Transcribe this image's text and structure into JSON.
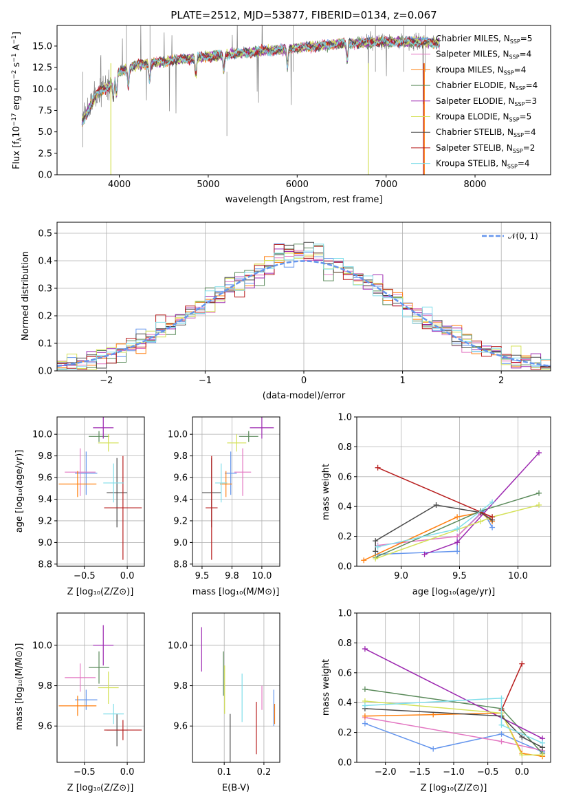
{
  "figure": {
    "title": "PLATE=2512, MJD=53877, FIBERID=0134, z=0.067"
  },
  "chart_data": [
    {
      "id": "spectrum",
      "type": "line",
      "title": "PLATE=2512, MJD=53877, FIBERID=0134, z=0.067",
      "xlabel": "wavelength [Angstrom, rest frame]",
      "ylabel": "Flux [fλ10⁻¹⁷ erg cm⁻² s⁻¹ A⁻¹]",
      "xlim": [
        3300,
        8850
      ],
      "ylim": [
        0,
        17.4
      ],
      "xticks": [
        4000,
        5000,
        6000,
        7000,
        8000
      ],
      "yticks": [
        0.0,
        2.5,
        5.0,
        7.5,
        10.0,
        12.5,
        15.0
      ],
      "grid": false,
      "legend_position": "right",
      "series": [
        {
          "name": "Chabrier MILES, N_SSP=5",
          "color": "#6495ed"
        },
        {
          "name": "Salpeter MILES, N_SSP=4",
          "color": "#e377c2"
        },
        {
          "name": "Kroupa MILES, N_SSP=4",
          "color": "#ff7f0e"
        },
        {
          "name": "Chabrier ELODIE, N_SSP=4",
          "color": "#5a8a5a"
        },
        {
          "name": "Salpeter ELODIE, N_SSP=3",
          "color": "#9c27b0"
        },
        {
          "name": "Kroupa ELODIE, N_SSP=5",
          "color": "#d4e157"
        },
        {
          "name": "Chabrier STELIB, N_SSP=4",
          "color": "#4a4a4a"
        },
        {
          "name": "Salpeter STELIB, N_SSP=2",
          "color": "#b71c1c"
        },
        {
          "name": "Kroupa STELIB, N_SSP=4",
          "color": "#80deea"
        }
      ],
      "continuum_x": [
        3580,
        3650,
        3750,
        3900,
        4000,
        4200,
        4500,
        5000,
        5500,
        6000,
        6500,
        7000,
        7400,
        7600
      ],
      "continuum_y": [
        6.0,
        7.5,
        9.5,
        10.5,
        12.0,
        12.8,
        13.2,
        13.8,
        14.3,
        14.8,
        15.3,
        15.5,
        15.5,
        15.3
      ]
    },
    {
      "id": "residuals",
      "type": "line",
      "xlabel": "(data-model)/error",
      "ylabel": "Normed distribution",
      "xlim": [
        -2.5,
        2.5
      ],
      "ylim": [
        0,
        0.54
      ],
      "xticks": [
        -2,
        -1,
        0,
        1,
        2
      ],
      "yticks": [
        0.0,
        0.1,
        0.2,
        0.3,
        0.4,
        0.5
      ],
      "grid": true,
      "legend_position": "top-right",
      "legend": "𝒩(0, 1)"
    },
    {
      "id": "z_vs_age",
      "type": "scatter",
      "xlabel": "Z [log₁₀(Z/Z⊙)]",
      "ylabel": "age  [log₁₀(age/yr)]",
      "xlim": [
        -0.82,
        0.2
      ],
      "ylim": [
        8.78,
        10.16
      ],
      "xticks": [
        -0.5,
        0.0
      ],
      "yticks": [
        8.8,
        9.0,
        9.2,
        9.4,
        9.6,
        9.8,
        10.0
      ],
      "points": [
        {
          "x": -0.48,
          "y": 9.64,
          "xerr": 0.13,
          "yerr": 0.2,
          "color": "#6495ed"
        },
        {
          "x": -0.55,
          "y": 9.65,
          "xerr": 0.18,
          "yerr": 0.22,
          "color": "#e377c2"
        },
        {
          "x": -0.58,
          "y": 9.54,
          "xerr": 0.22,
          "yerr": 0.12,
          "color": "#ff7f0e"
        },
        {
          "x": -0.33,
          "y": 9.98,
          "xerr": 0.12,
          "yerr": 0.05,
          "color": "#5a8a5a"
        },
        {
          "x": -0.28,
          "y": 10.06,
          "xerr": 0.12,
          "yerr": 0.1,
          "color": "#9c27b0"
        },
        {
          "x": -0.22,
          "y": 9.92,
          "xerr": 0.12,
          "yerr": 0.08,
          "color": "#d4e157"
        },
        {
          "x": -0.12,
          "y": 9.46,
          "xerr": 0.12,
          "yerr": 0.32,
          "color": "#4a4a4a"
        },
        {
          "x": -0.05,
          "y": 9.32,
          "xerr": 0.22,
          "yerr": 0.48,
          "color": "#b71c1c"
        },
        {
          "x": -0.16,
          "y": 9.55,
          "xerr": 0.12,
          "yerr": 0.18,
          "color": "#80deea"
        }
      ]
    },
    {
      "id": "mass_vs_age",
      "type": "scatter",
      "xlabel": "mass [log₁₀(M/M⊙)]",
      "xlim": [
        9.42,
        10.15
      ],
      "ylim": [
        8.78,
        10.16
      ],
      "xticks": [
        9.5,
        9.75,
        10.0
      ],
      "yticks": [
        8.8,
        9.0,
        9.2,
        9.4,
        9.6,
        9.8,
        10.0
      ],
      "points": [
        {
          "x": 9.74,
          "y": 9.64,
          "xerr": 0.05,
          "yerr": 0.2,
          "color": "#6495ed"
        },
        {
          "x": 9.84,
          "y": 9.65,
          "xerr": 0.07,
          "yerr": 0.22,
          "color": "#e377c2"
        },
        {
          "x": 9.7,
          "y": 9.54,
          "xerr": 0.05,
          "yerr": 0.12,
          "color": "#ff7f0e"
        },
        {
          "x": 9.89,
          "y": 9.98,
          "xerr": 0.08,
          "yerr": 0.05,
          "color": "#5a8a5a"
        },
        {
          "x": 10.0,
          "y": 10.06,
          "xerr": 0.1,
          "yerr": 0.1,
          "color": "#9c27b0"
        },
        {
          "x": 9.79,
          "y": 9.92,
          "xerr": 0.08,
          "yerr": 0.08,
          "color": "#d4e157"
        },
        {
          "x": 9.58,
          "y": 9.46,
          "xerr": 0.08,
          "yerr": 0.32,
          "color": "#4a4a4a"
        },
        {
          "x": 9.58,
          "y": 9.32,
          "xerr": 0.05,
          "yerr": 0.48,
          "color": "#b71c1c"
        },
        {
          "x": 9.66,
          "y": 9.55,
          "xerr": 0.05,
          "yerr": 0.18,
          "color": "#80deea"
        }
      ]
    },
    {
      "id": "weight_vs_age",
      "type": "line",
      "xlabel": "age  [log₁₀(age/yr)]",
      "ylabel": "mass weight",
      "xlim": [
        8.62,
        10.28
      ],
      "ylim": [
        0,
        1.0
      ],
      "xticks": [
        9.0,
        9.5,
        10.0
      ],
      "yticks": [
        0.0,
        0.2,
        0.4,
        0.6,
        0.8,
        1.0
      ],
      "series": [
        {
          "color": "#6495ed",
          "x": [
            8.8,
            9.48,
            9.48,
            9.7,
            9.78
          ],
          "y": [
            0.08,
            0.1,
            0.2,
            0.37,
            0.26
          ]
        },
        {
          "color": "#e377c2",
          "x": [
            8.8,
            9.48,
            9.68,
            9.78
          ],
          "y": [
            0.14,
            0.2,
            0.35,
            0.33
          ]
        },
        {
          "color": "#ff7f0e",
          "x": [
            8.68,
            9.48,
            9.68,
            9.78
          ],
          "y": [
            0.04,
            0.33,
            0.36,
            0.3
          ]
        },
        {
          "color": "#5a8a5a",
          "x": [
            8.78,
            9.68,
            10.18
          ],
          "y": [
            0.06,
            0.37,
            0.49
          ]
        },
        {
          "color": "#9c27b0",
          "x": [
            9.2,
            9.48,
            10.18
          ],
          "y": [
            0.08,
            0.16,
            0.76
          ]
        },
        {
          "color": "#d4e157",
          "x": [
            8.78,
            9.68,
            9.78,
            10.18
          ],
          "y": [
            0.05,
            0.3,
            0.33,
            0.41
          ]
        },
        {
          "color": "#4a4a4a",
          "x": [
            8.78,
            8.78,
            9.3,
            9.68,
            9.78
          ],
          "y": [
            0.1,
            0.17,
            0.41,
            0.36,
            0.31
          ]
        },
        {
          "color": "#b71c1c",
          "x": [
            8.8,
            9.78
          ],
          "y": [
            0.66,
            0.33
          ]
        },
        {
          "color": "#80deea",
          "x": [
            8.8,
            9.48,
            9.78
          ],
          "y": [
            0.13,
            0.25,
            0.43
          ]
        }
      ]
    },
    {
      "id": "z_vs_mass",
      "type": "scatter",
      "xlabel": "Z [log₁₀(Z/Z⊙)]",
      "ylabel": "mass [log₁₀(M/M⊙)]",
      "xlim": [
        -0.82,
        0.2
      ],
      "ylim": [
        9.42,
        10.16
      ],
      "xticks": [
        -0.5,
        0.0
      ],
      "yticks": [
        9.6,
        9.8,
        10.0
      ],
      "points": [
        {
          "x": -0.48,
          "y": 9.73,
          "xerr": 0.13,
          "yerr": 0.05,
          "color": "#6495ed"
        },
        {
          "x": -0.55,
          "y": 9.84,
          "xerr": 0.18,
          "yerr": 0.07,
          "color": "#e377c2"
        },
        {
          "x": -0.58,
          "y": 9.7,
          "xerr": 0.22,
          "yerr": 0.05,
          "color": "#ff7f0e"
        },
        {
          "x": -0.33,
          "y": 9.89,
          "xerr": 0.12,
          "yerr": 0.08,
          "color": "#5a8a5a"
        },
        {
          "x": -0.28,
          "y": 10.0,
          "xerr": 0.12,
          "yerr": 0.1,
          "color": "#9c27b0"
        },
        {
          "x": -0.22,
          "y": 9.79,
          "xerr": 0.12,
          "yerr": 0.08,
          "color": "#d4e157"
        },
        {
          "x": -0.12,
          "y": 9.58,
          "xerr": 0.12,
          "yerr": 0.08,
          "color": "#4a4a4a"
        },
        {
          "x": -0.05,
          "y": 9.58,
          "xerr": 0.22,
          "yerr": 0.05,
          "color": "#b71c1c"
        },
        {
          "x": -0.16,
          "y": 9.66,
          "xerr": 0.12,
          "yerr": 0.05,
          "color": "#80deea"
        }
      ]
    },
    {
      "id": "ebv_vs_mass",
      "type": "scatter",
      "xlabel": "E(B-V)",
      "xlim": [
        0.02,
        0.24
      ],
      "ylim": [
        9.42,
        10.16
      ],
      "xticks": [
        0.1,
        0.2
      ],
      "yticks": [
        9.6,
        9.8,
        10.0
      ],
      "points": [
        {
          "x": 0.225,
          "y": 9.69,
          "xerr": 0,
          "yerr": 0.09,
          "color": "#6495ed"
        },
        {
          "x": 0.195,
          "y": 9.74,
          "xerr": 0,
          "yerr": 0.06,
          "color": "#e377c2"
        },
        {
          "x": 0.227,
          "y": 9.66,
          "xerr": 0,
          "yerr": 0.05,
          "color": "#ff7f0e"
        },
        {
          "x": 0.098,
          "y": 9.86,
          "xerr": 0,
          "yerr": 0.11,
          "color": "#5a8a5a"
        },
        {
          "x": 0.043,
          "y": 9.98,
          "xerr": 0,
          "yerr": 0.11,
          "color": "#9c27b0"
        },
        {
          "x": 0.101,
          "y": 9.78,
          "xerr": 0,
          "yerr": 0.12,
          "color": "#d4e157"
        },
        {
          "x": 0.115,
          "y": 9.54,
          "xerr": 0,
          "yerr": 0.12,
          "color": "#4a4a4a"
        },
        {
          "x": 0.181,
          "y": 9.59,
          "xerr": 0,
          "yerr": 0.13,
          "color": "#b71c1c"
        },
        {
          "x": 0.145,
          "y": 9.74,
          "xerr": 0,
          "yerr": 0.12,
          "color": "#80deea"
        }
      ]
    },
    {
      "id": "weight_vs_z",
      "type": "line",
      "xlabel": "Z [log₁₀(Z/Z⊙)]",
      "ylabel": "mass weight",
      "xlim": [
        -2.42,
        0.42
      ],
      "ylim": [
        0,
        1.0
      ],
      "xticks": [
        -2.0,
        -1.5,
        -1.0,
        -0.5,
        0.0
      ],
      "yticks": [
        0.0,
        0.2,
        0.4,
        0.6,
        0.8,
        1.0
      ],
      "series": [
        {
          "color": "#6495ed",
          "x": [
            -2.3,
            -1.3,
            -0.3,
            0.3
          ],
          "y": [
            0.26,
            0.09,
            0.19,
            0.07
          ]
        },
        {
          "color": "#e377c2",
          "x": [
            -2.3,
            -0.3,
            0.3
          ],
          "y": [
            0.3,
            0.14,
            0.08
          ]
        },
        {
          "color": "#ff7f0e",
          "x": [
            -2.3,
            -1.3,
            -0.3,
            0.0,
            0.3
          ],
          "y": [
            0.31,
            0.32,
            0.33,
            0.06,
            0.04
          ]
        },
        {
          "color": "#5a8a5a",
          "x": [
            -2.3,
            -0.3,
            0.3
          ],
          "y": [
            0.49,
            0.36,
            0.06
          ]
        },
        {
          "color": "#9c27b0",
          "x": [
            -2.3,
            0.3
          ],
          "y": [
            0.76,
            0.16
          ]
        },
        {
          "color": "#d4e157",
          "x": [
            -2.3,
            -0.3,
            0.0,
            0.3
          ],
          "y": [
            0.41,
            0.33,
            0.05,
            0.05
          ]
        },
        {
          "color": "#4a4a4a",
          "x": [
            -2.3,
            -0.3,
            0.0,
            0.3
          ],
          "y": [
            0.36,
            0.31,
            0.17,
            0.1
          ]
        },
        {
          "color": "#b71c1c",
          "x": [
            -0.3,
            0.0
          ],
          "y": [
            0.35,
            0.66
          ]
        },
        {
          "color": "#80deea",
          "x": [
            -2.3,
            -0.3,
            -0.3,
            0.3
          ],
          "y": [
            0.38,
            0.43,
            0.25,
            0.13
          ]
        }
      ]
    }
  ]
}
